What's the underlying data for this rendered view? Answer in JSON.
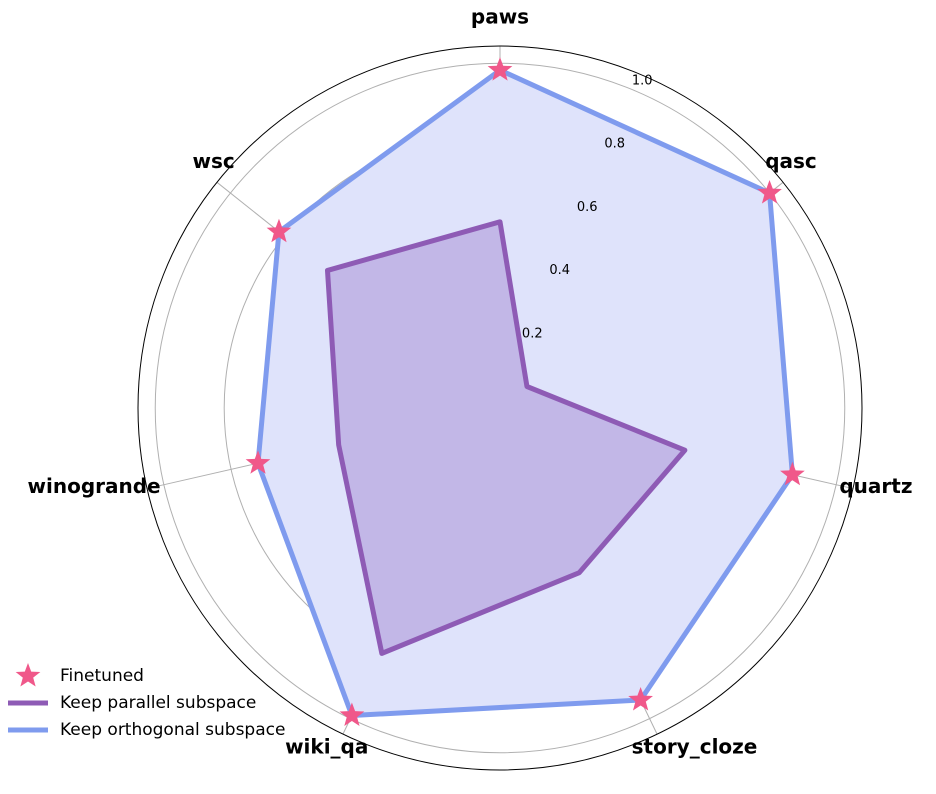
{
  "chart_data": {
    "type": "radar",
    "categories": [
      "paws",
      "qasc",
      "quartz",
      "story_cloze",
      "wiki_qa",
      "winogrande",
      "wsc"
    ],
    "ylim": [
      0,
      1.05
    ],
    "yticks": [
      0.2,
      0.4,
      0.6,
      0.8,
      {
        "value": 1.0,
        "label": "1.0"
      }
    ],
    "grid": true,
    "legend": "lower left",
    "series": [
      {
        "name": "Finetuned",
        "color": "#f0588a",
        "marker": "star",
        "values": [
          0.98,
          1.0,
          0.87,
          0.94,
          0.99,
          0.72,
          0.82
        ]
      },
      {
        "name": "Keep parallel subspace",
        "color": "#8e5bb5",
        "fill": "#b8a8e0",
        "values": [
          0.54,
          0.1,
          0.55,
          0.53,
          0.79,
          0.48,
          0.64
        ]
      },
      {
        "name": "Keep orthogonal subspace",
        "color": "#7f9bee",
        "fill": "#dfe3fb",
        "values": [
          0.98,
          1.0,
          0.87,
          0.94,
          0.99,
          0.72,
          0.82
        ]
      }
    ]
  }
}
